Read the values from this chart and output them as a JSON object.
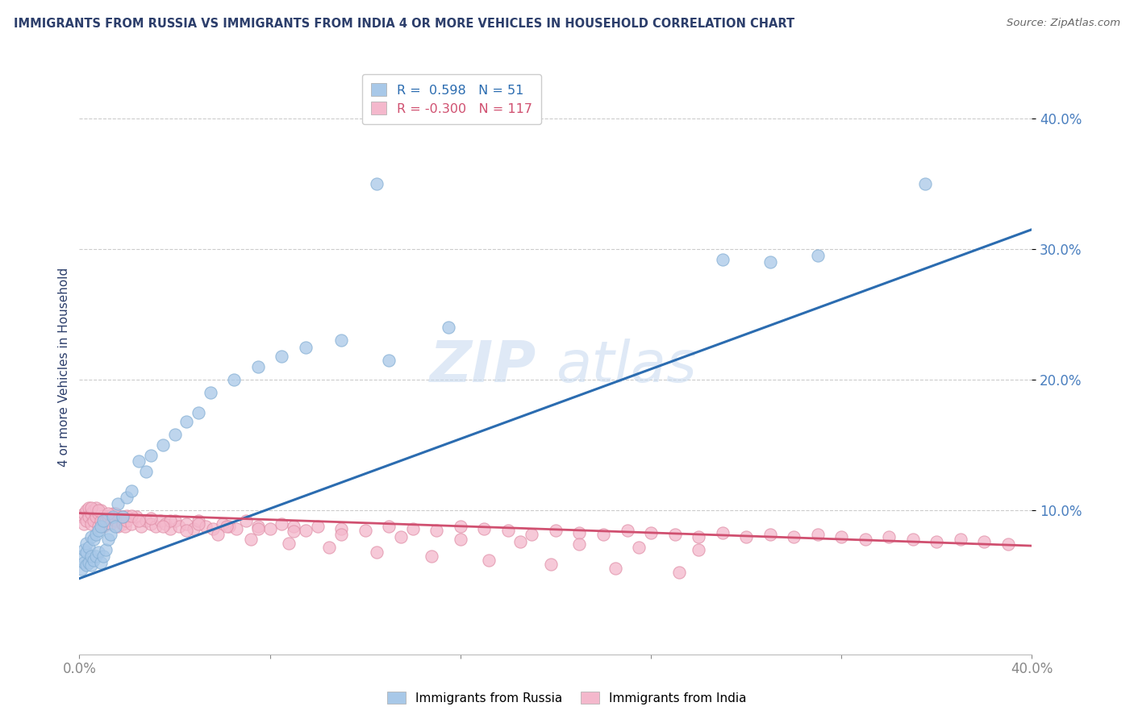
{
  "title": "IMMIGRANTS FROM RUSSIA VS IMMIGRANTS FROM INDIA 4 OR MORE VEHICLES IN HOUSEHOLD CORRELATION CHART",
  "source": "Source: ZipAtlas.com",
  "ylabel": "4 or more Vehicles in Household",
  "xlim": [
    0.0,
    0.4
  ],
  "ylim": [
    -0.01,
    0.43
  ],
  "russia_R": 0.598,
  "russia_N": 51,
  "india_R": -0.3,
  "india_N": 117,
  "russia_color": "#a8c8e8",
  "russia_edge_color": "#85afd4",
  "russia_line_color": "#2b6cb0",
  "india_color": "#f4b8cc",
  "india_edge_color": "#e090a8",
  "india_line_color": "#d05070",
  "background_color": "#ffffff",
  "grid_color": "#cccccc",
  "watermark_color": "#c5d8ef",
  "title_color": "#2c3e6b",
  "tick_color": "#4a7fbf",
  "russia_line_x0": 0.0,
  "russia_line_y0": 0.048,
  "russia_line_x1": 0.4,
  "russia_line_y1": 0.315,
  "india_line_x0": 0.0,
  "india_line_y0": 0.098,
  "india_line_x1": 0.4,
  "india_line_y1": 0.073,
  "russia_x": [
    0.001,
    0.001,
    0.002,
    0.002,
    0.003,
    0.003,
    0.003,
    0.004,
    0.004,
    0.005,
    0.005,
    0.005,
    0.006,
    0.006,
    0.007,
    0.007,
    0.008,
    0.008,
    0.009,
    0.009,
    0.01,
    0.01,
    0.011,
    0.012,
    0.013,
    0.014,
    0.015,
    0.016,
    0.018,
    0.02,
    0.022,
    0.025,
    0.028,
    0.03,
    0.035,
    0.04,
    0.045,
    0.05,
    0.055,
    0.065,
    0.075,
    0.085,
    0.095,
    0.11,
    0.13,
    0.155,
    0.27,
    0.29,
    0.31,
    0.355,
    0.125
  ],
  "russia_y": [
    0.055,
    0.065,
    0.06,
    0.07,
    0.058,
    0.068,
    0.075,
    0.06,
    0.072,
    0.058,
    0.065,
    0.08,
    0.062,
    0.078,
    0.065,
    0.082,
    0.068,
    0.085,
    0.06,
    0.088,
    0.065,
    0.092,
    0.07,
    0.078,
    0.082,
    0.095,
    0.088,
    0.105,
    0.095,
    0.11,
    0.115,
    0.138,
    0.13,
    0.142,
    0.15,
    0.158,
    0.168,
    0.175,
    0.19,
    0.2,
    0.21,
    0.218,
    0.225,
    0.23,
    0.215,
    0.24,
    0.292,
    0.29,
    0.295,
    0.35,
    0.35
  ],
  "india_x": [
    0.001,
    0.002,
    0.002,
    0.003,
    0.003,
    0.004,
    0.004,
    0.005,
    0.005,
    0.006,
    0.006,
    0.007,
    0.007,
    0.008,
    0.008,
    0.009,
    0.009,
    0.01,
    0.01,
    0.011,
    0.012,
    0.013,
    0.014,
    0.015,
    0.016,
    0.017,
    0.018,
    0.019,
    0.02,
    0.02,
    0.022,
    0.024,
    0.026,
    0.028,
    0.03,
    0.032,
    0.034,
    0.036,
    0.038,
    0.04,
    0.042,
    0.045,
    0.048,
    0.05,
    0.053,
    0.056,
    0.06,
    0.063,
    0.066,
    0.07,
    0.075,
    0.08,
    0.085,
    0.09,
    0.095,
    0.1,
    0.11,
    0.12,
    0.13,
    0.14,
    0.15,
    0.16,
    0.17,
    0.18,
    0.19,
    0.2,
    0.21,
    0.22,
    0.23,
    0.24,
    0.25,
    0.26,
    0.27,
    0.28,
    0.29,
    0.3,
    0.31,
    0.32,
    0.33,
    0.34,
    0.35,
    0.36,
    0.37,
    0.38,
    0.39,
    0.015,
    0.022,
    0.03,
    0.038,
    0.05,
    0.062,
    0.075,
    0.09,
    0.11,
    0.135,
    0.16,
    0.185,
    0.21,
    0.235,
    0.26,
    0.005,
    0.008,
    0.012,
    0.018,
    0.025,
    0.035,
    0.045,
    0.058,
    0.072,
    0.088,
    0.105,
    0.125,
    0.148,
    0.172,
    0.198,
    0.225,
    0.252
  ],
  "india_y": [
    0.095,
    0.09,
    0.098,
    0.092,
    0.1,
    0.095,
    0.102,
    0.09,
    0.098,
    0.092,
    0.1,
    0.095,
    0.102,
    0.088,
    0.098,
    0.092,
    0.1,
    0.088,
    0.096,
    0.092,
    0.095,
    0.09,
    0.098,
    0.092,
    0.088,
    0.095,
    0.09,
    0.088,
    0.092,
    0.096,
    0.09,
    0.095,
    0.088,
    0.092,
    0.09,
    0.088,
    0.092,
    0.09,
    0.086,
    0.092,
    0.088,
    0.09,
    0.086,
    0.092,
    0.088,
    0.086,
    0.09,
    0.088,
    0.086,
    0.092,
    0.088,
    0.086,
    0.09,
    0.088,
    0.085,
    0.088,
    0.086,
    0.085,
    0.088,
    0.086,
    0.085,
    0.088,
    0.086,
    0.085,
    0.082,
    0.085,
    0.083,
    0.082,
    0.085,
    0.083,
    0.082,
    0.08,
    0.083,
    0.08,
    0.082,
    0.08,
    0.082,
    0.08,
    0.078,
    0.08,
    0.078,
    0.076,
    0.078,
    0.076,
    0.074,
    0.098,
    0.096,
    0.094,
    0.092,
    0.09,
    0.088,
    0.086,
    0.084,
    0.082,
    0.08,
    0.078,
    0.076,
    0.074,
    0.072,
    0.07,
    0.102,
    0.1,
    0.098,
    0.095,
    0.092,
    0.088,
    0.085,
    0.082,
    0.078,
    0.075,
    0.072,
    0.068,
    0.065,
    0.062,
    0.059,
    0.056,
    0.053
  ]
}
